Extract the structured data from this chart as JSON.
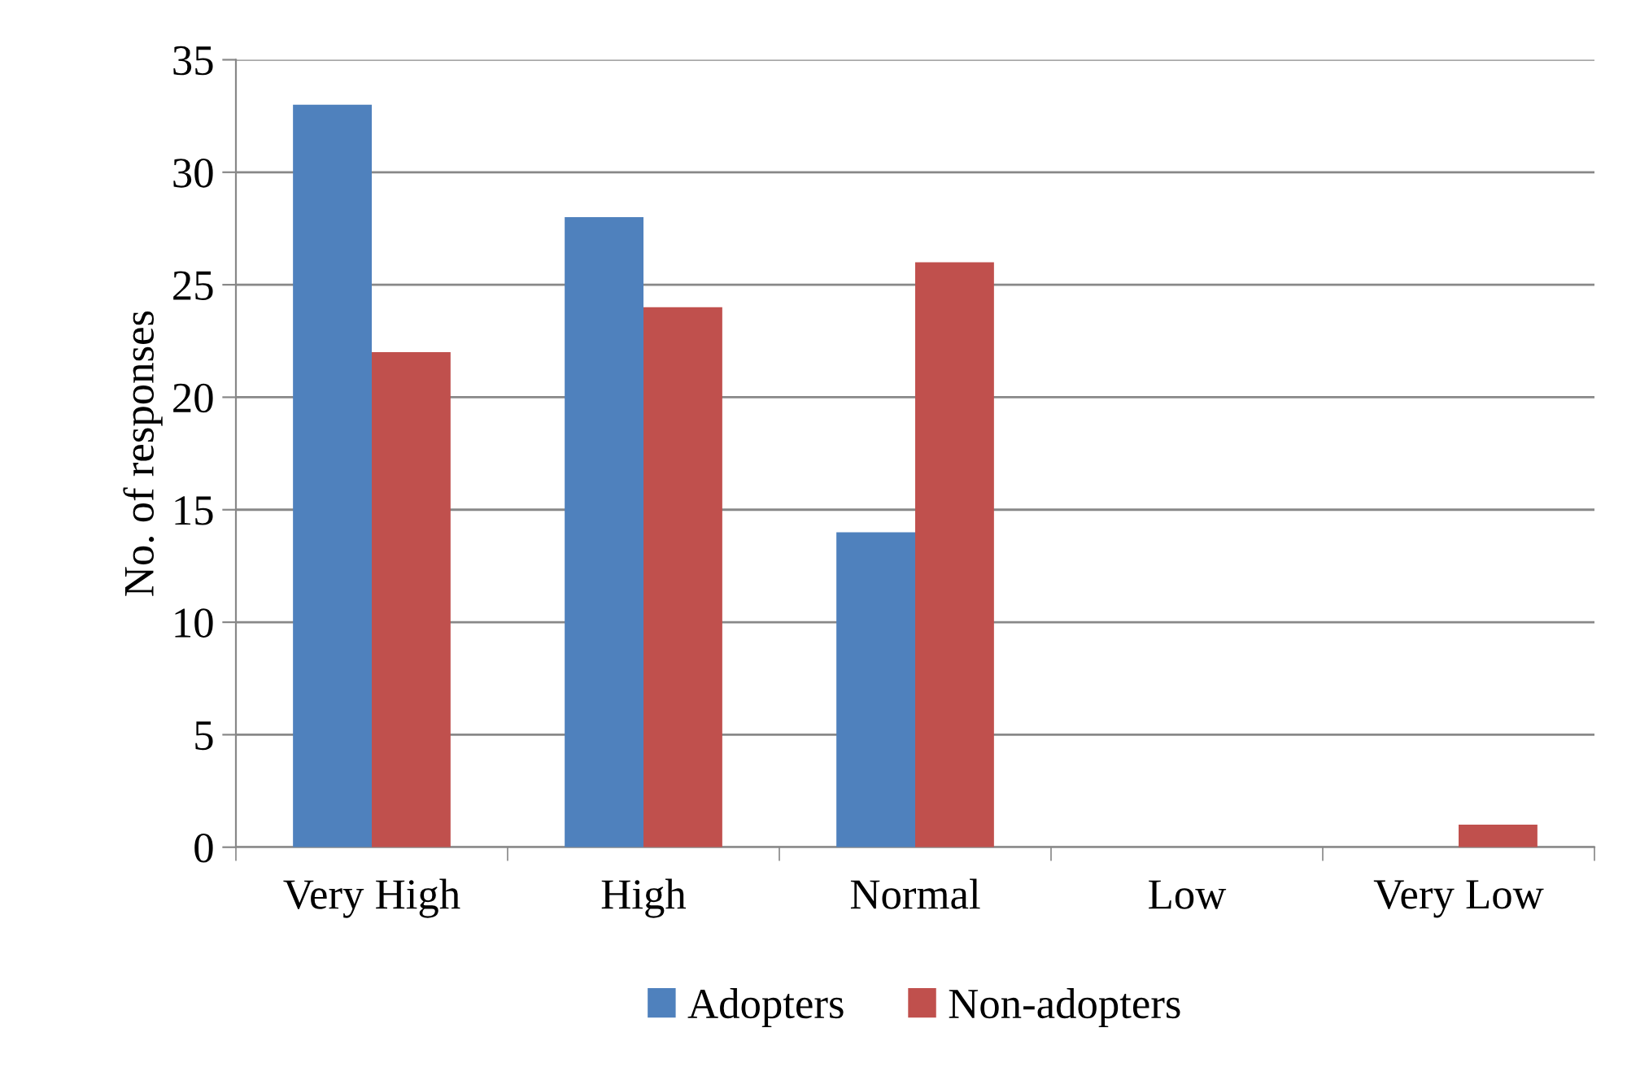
{
  "chart_data": {
    "type": "bar",
    "ylabel": "No. of responses",
    "categories": [
      "Very High",
      "High",
      "Normal",
      "Low",
      "Very Low"
    ],
    "series": [
      {
        "name": "Adopters",
        "color": "#4f81bd",
        "values": [
          33,
          28,
          14,
          0,
          0
        ]
      },
      {
        "name": "Non-adopters",
        "color": "#c0504d",
        "values": [
          22,
          24,
          26,
          0,
          1
        ]
      }
    ],
    "ylim": [
      0,
      35
    ],
    "yticks": [
      0,
      5,
      10,
      15,
      20,
      25,
      30,
      35
    ],
    "grid": "y",
    "legend": "bottom"
  }
}
